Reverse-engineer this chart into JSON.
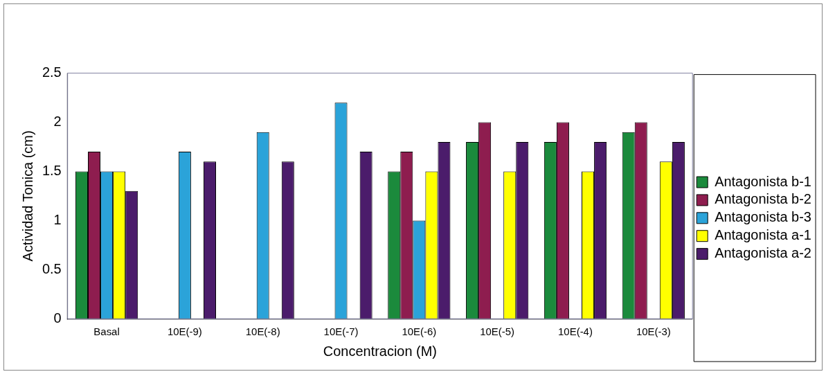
{
  "chart_data": {
    "type": "bar",
    "xlabel": "Concentracion (M)",
    "ylabel": "Actividad Tonica (cm)",
    "categories": [
      "Basal",
      "10E(-9)",
      "10E(-8)",
      "10E(-7)",
      "10E(-6)",
      "10E(-5)",
      "10E(-4)",
      "10E(-3)"
    ],
    "series": [
      {
        "name": "Antagonista b-1",
        "color": "#1b8a3c",
        "values": [
          1.5,
          null,
          null,
          null,
          1.5,
          1.8,
          1.8,
          1.9
        ]
      },
      {
        "name": "Antagonista b-2",
        "color": "#8e1d4f",
        "values": [
          1.7,
          null,
          null,
          null,
          1.7,
          2.0,
          2.0,
          2.0
        ]
      },
      {
        "name": "Antagonista b-3",
        "color": "#2ba3d9",
        "values": [
          1.5,
          1.7,
          1.9,
          2.2,
          1.0,
          null,
          null,
          null
        ]
      },
      {
        "name": "Antagonista a-1",
        "color": "#ffff00",
        "values": [
          1.5,
          null,
          null,
          null,
          1.5,
          1.5,
          1.5,
          1.6
        ]
      },
      {
        "name": "Antagonista a-2",
        "color": "#4b1c6b",
        "values": [
          1.3,
          1.6,
          1.6,
          1.7,
          1.8,
          1.8,
          1.8,
          1.8
        ]
      }
    ],
    "ylim": [
      0,
      2.5
    ],
    "yticks": [
      0,
      0.5,
      1,
      1.5,
      2,
      2.5
    ],
    "grid": false,
    "legend": "right"
  }
}
